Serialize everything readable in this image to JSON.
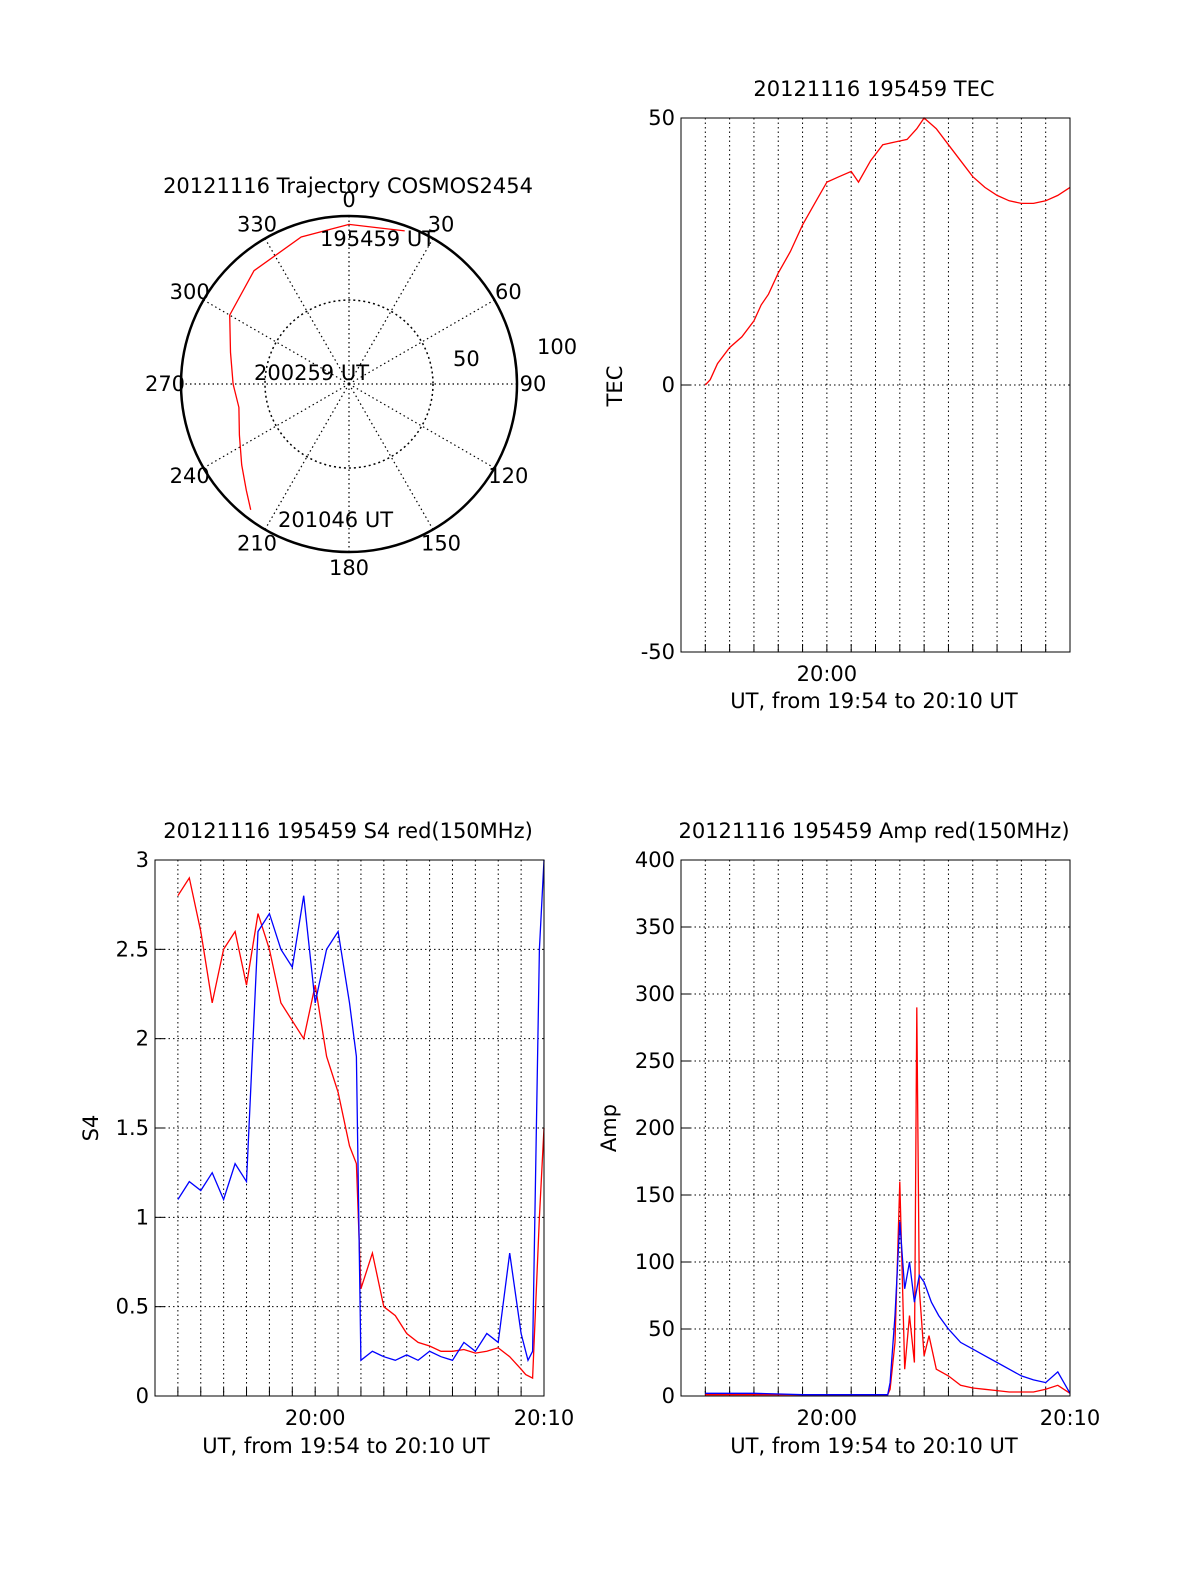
{
  "chart_data": [
    {
      "id": "trajectory",
      "type": "polar",
      "title": "20121116 Trajectory COSMOS2454",
      "azimuth_labels": [
        "0",
        "30",
        "60",
        "90",
        "120",
        "150",
        "180",
        "210",
        "240",
        "270",
        "300",
        "330"
      ],
      "radius_labels": [
        "50",
        "100"
      ],
      "labels": {
        "start": "195459 UT",
        "mid": "200259 UT",
        "end": "201046 UT"
      },
      "track_color": "#ff0000",
      "track": [
        {
          "az": 20,
          "el": 3
        },
        {
          "az": 0,
          "el": 5
        },
        {
          "az": 342,
          "el": 8
        },
        {
          "az": 320,
          "el": 12
        },
        {
          "az": 300,
          "el": 18
        },
        {
          "az": 285,
          "el": 27
        },
        {
          "az": 270,
          "el": 31
        },
        {
          "az": 258,
          "el": 33
        },
        {
          "az": 245,
          "el": 28
        },
        {
          "az": 233,
          "el": 20
        },
        {
          "az": 224,
          "el": 12
        },
        {
          "az": 218,
          "el": 5
        }
      ]
    },
    {
      "id": "tec",
      "type": "line",
      "title": "20121116 195459 TEC",
      "ylabel": "TEC",
      "xlabel": "UT, from 19:54 to 20:10 UT",
      "xlim": [
        0,
        16
      ],
      "ylim": [
        -50,
        50
      ],
      "yticks": [
        "50",
        "0",
        "-50"
      ],
      "xticks": [
        {
          "x": 6,
          "label": "20:00"
        }
      ],
      "grid": true,
      "series": [
        {
          "color": "#ff0000",
          "x": [
            1.0,
            1.2,
            1.5,
            2.0,
            2.5,
            3.0,
            3.3,
            3.6,
            4.0,
            4.5,
            5.0,
            5.5,
            6.0,
            6.5,
            7.0,
            7.3,
            7.8,
            8.3,
            8.8,
            9.3,
            9.7,
            10.0,
            10.5,
            11.0,
            11.5,
            12.0,
            12.5,
            13.0,
            13.5,
            14.0,
            14.5,
            15.0,
            15.5,
            16.0
          ],
          "y": [
            0,
            1,
            4,
            7,
            9,
            12,
            15,
            17,
            21,
            25,
            30,
            34,
            38,
            39,
            40,
            38,
            42,
            45,
            45.5,
            46,
            48,
            50,
            48,
            45,
            42,
            39,
            37,
            35.5,
            34.5,
            34,
            34,
            34.5,
            35.5,
            37
          ]
        }
      ]
    },
    {
      "id": "s4",
      "type": "line",
      "title": "20121116 195459 S4 red(150MHz)",
      "ylabel": "S4",
      "xlabel": "UT, from 19:54 to 20:10 UT",
      "xlim": [
        -1,
        16
      ],
      "ylim": [
        0,
        3
      ],
      "yticks": [
        "0",
        "0.5",
        "1",
        "1.5",
        "2",
        "2.5",
        "3"
      ],
      "xticks": [
        {
          "x": 6,
          "label": "20:00"
        },
        {
          "x": 16,
          "label": "20:10"
        }
      ],
      "grid": true,
      "series": [
        {
          "color": "#ff0000",
          "x": [
            0,
            0.5,
            1.0,
            1.5,
            2.0,
            2.5,
            3.0,
            3.5,
            4.0,
            4.5,
            5.0,
            5.5,
            6.0,
            6.5,
            7.0,
            7.5,
            7.8,
            8.0,
            8.5,
            9.0,
            9.5,
            10.0,
            10.5,
            11.0,
            11.5,
            12.0,
            12.5,
            13.0,
            13.5,
            14.0,
            14.5,
            15.0,
            15.2,
            15.5,
            15.8,
            16.0
          ],
          "y": [
            2.8,
            2.9,
            2.6,
            2.2,
            2.5,
            2.6,
            2.3,
            2.7,
            2.5,
            2.2,
            2.1,
            2.0,
            2.3,
            1.9,
            1.7,
            1.4,
            1.3,
            0.6,
            0.8,
            0.5,
            0.45,
            0.35,
            0.3,
            0.28,
            0.25,
            0.25,
            0.26,
            0.24,
            0.25,
            0.27,
            0.22,
            0.15,
            0.12,
            0.1,
            1.0,
            1.5
          ]
        },
        {
          "color": "#0000ff",
          "x": [
            0,
            0.5,
            1.0,
            1.5,
            2.0,
            2.5,
            3.0,
            3.5,
            4.0,
            4.5,
            5.0,
            5.5,
            6.0,
            6.5,
            7.0,
            7.5,
            7.8,
            8.0,
            8.5,
            9.0,
            9.5,
            10.0,
            10.5,
            11.0,
            11.5,
            12.0,
            12.5,
            13.0,
            13.5,
            14.0,
            14.5,
            15.0,
            15.3,
            15.5,
            15.8,
            16.0
          ],
          "y": [
            1.1,
            1.2,
            1.15,
            1.25,
            1.1,
            1.3,
            1.2,
            2.6,
            2.7,
            2.5,
            2.4,
            2.8,
            2.2,
            2.5,
            2.6,
            2.2,
            1.9,
            0.2,
            0.25,
            0.22,
            0.2,
            0.23,
            0.2,
            0.25,
            0.22,
            0.2,
            0.3,
            0.25,
            0.35,
            0.3,
            0.8,
            0.35,
            0.2,
            0.25,
            2.5,
            3.0
          ]
        }
      ]
    },
    {
      "id": "amp",
      "type": "line",
      "title": "20121116 195459 Amp red(150MHz)",
      "ylabel": "Amp",
      "xlabel": "UT, from 19:54 to 20:10 UT",
      "xlim": [
        0,
        16
      ],
      "ylim": [
        0,
        400
      ],
      "yticks": [
        "0",
        "50",
        "100",
        "150",
        "200",
        "250",
        "300",
        "350",
        "400"
      ],
      "xticks": [
        {
          "x": 6,
          "label": "20:00"
        },
        {
          "x": 16,
          "label": "20:10"
        }
      ],
      "grid": true,
      "series": [
        {
          "color": "#ff0000",
          "x": [
            1.0,
            3.0,
            5.0,
            7.0,
            8.5,
            8.6,
            8.8,
            9.0,
            9.2,
            9.4,
            9.6,
            9.7,
            9.8,
            10.0,
            10.2,
            10.5,
            11.0,
            11.5,
            12.0,
            12.5,
            13.0,
            13.5,
            14.0,
            14.5,
            15.0,
            15.5,
            16.0
          ],
          "y": [
            1,
            1,
            1,
            1,
            1,
            5,
            40,
            160,
            20,
            60,
            25,
            290,
            80,
            30,
            45,
            20,
            15,
            8,
            6,
            5,
            4,
            3,
            3,
            3,
            5,
            8,
            2
          ]
        },
        {
          "color": "#0000ff",
          "x": [
            1.0,
            3.0,
            5.0,
            7.0,
            8.5,
            8.6,
            8.8,
            9.0,
            9.2,
            9.4,
            9.6,
            9.8,
            10.0,
            10.3,
            10.6,
            11.0,
            11.5,
            12.0,
            12.5,
            13.0,
            13.5,
            14.0,
            14.5,
            15.0,
            15.5,
            16.0
          ],
          "y": [
            2,
            2,
            1,
            1,
            1,
            10,
            60,
            130,
            80,
            100,
            70,
            90,
            85,
            70,
            60,
            50,
            40,
            35,
            30,
            25,
            20,
            15,
            12,
            10,
            18,
            2
          ]
        }
      ]
    }
  ]
}
